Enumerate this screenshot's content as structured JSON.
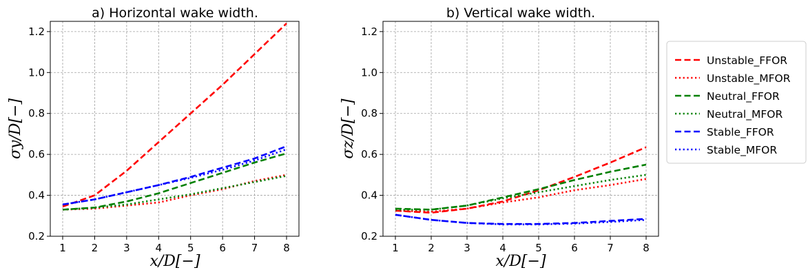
{
  "series_styles": [
    {
      "name": "Unstable_FFOR",
      "color": "#ff0000",
      "dash": "dashed"
    },
    {
      "name": "Unstable_MFOR",
      "color": "#ff0000",
      "dash": "dotted"
    },
    {
      "name": "Neutral_FFOR",
      "color": "#008000",
      "dash": "dashed"
    },
    {
      "name": "Neutral_MFOR",
      "color": "#008000",
      "dash": "dotted"
    },
    {
      "name": "Stable_FFOR",
      "color": "#0000ff",
      "dash": "dashed"
    },
    {
      "name": "Stable_MFOR",
      "color": "#0000ff",
      "dash": "dotted"
    }
  ],
  "chart_data": [
    {
      "type": "line",
      "title": "a) Horizontal wake width.",
      "xlabel": "x/D[−]",
      "ylabel": "σy/D[−]",
      "xlim": [
        1,
        8
      ],
      "ylim": [
        0.2,
        1.25
      ],
      "x": [
        1,
        2,
        3,
        4,
        5,
        6,
        7,
        8
      ],
      "xticks": [
        "1",
        "2",
        "3",
        "4",
        "5",
        "6",
        "7",
        "8"
      ],
      "yticks": [
        "0.2",
        "0.4",
        "0.6",
        "0.8",
        "1.0",
        "1.2"
      ],
      "grid": true,
      "series": [
        {
          "name": "Unstable_FFOR",
          "values": [
            0.345,
            0.4,
            0.52,
            0.66,
            0.8,
            0.94,
            1.09,
            1.24
          ]
        },
        {
          "name": "Unstable_MFOR",
          "values": [
            0.33,
            0.335,
            0.35,
            0.365,
            0.4,
            0.43,
            0.47,
            0.5
          ]
        },
        {
          "name": "Neutral_FFOR",
          "values": [
            0.33,
            0.34,
            0.37,
            0.41,
            0.46,
            0.51,
            0.56,
            0.605
          ]
        },
        {
          "name": "Neutral_MFOR",
          "values": [
            0.33,
            0.34,
            0.355,
            0.38,
            0.405,
            0.435,
            0.465,
            0.495
          ]
        },
        {
          "name": "Stable_FFOR",
          "values": [
            0.355,
            0.38,
            0.415,
            0.45,
            0.49,
            0.535,
            0.58,
            0.64
          ]
        },
        {
          "name": "Stable_MFOR",
          "values": [
            0.355,
            0.38,
            0.415,
            0.45,
            0.485,
            0.525,
            0.57,
            0.625
          ]
        }
      ]
    },
    {
      "type": "line",
      "title": "b) Vertical wake width.",
      "xlabel": "x/D[−]",
      "ylabel": "σz/D[−]",
      "xlim": [
        1,
        8
      ],
      "ylim": [
        0.2,
        1.25
      ],
      "x": [
        1,
        2,
        3,
        4,
        5,
        6,
        7,
        8
      ],
      "xticks": [
        "1",
        "2",
        "3",
        "4",
        "5",
        "6",
        "7",
        "8"
      ],
      "yticks": [
        "0.2",
        "0.4",
        "0.6",
        "0.8",
        "1.0",
        "1.2"
      ],
      "grid": true,
      "series": [
        {
          "name": "Unstable_FFOR",
          "values": [
            0.325,
            0.315,
            0.335,
            0.37,
            0.425,
            0.49,
            0.56,
            0.635
          ]
        },
        {
          "name": "Unstable_MFOR",
          "values": [
            0.325,
            0.32,
            0.335,
            0.365,
            0.39,
            0.425,
            0.45,
            0.48
          ]
        },
        {
          "name": "Neutral_FFOR",
          "values": [
            0.335,
            0.33,
            0.35,
            0.39,
            0.43,
            0.475,
            0.515,
            0.55
          ]
        },
        {
          "name": "Neutral_MFOR",
          "values": [
            0.33,
            0.33,
            0.35,
            0.385,
            0.415,
            0.445,
            0.475,
            0.5
          ]
        },
        {
          "name": "Stable_FFOR",
          "values": [
            0.305,
            0.28,
            0.265,
            0.26,
            0.26,
            0.265,
            0.275,
            0.285
          ]
        },
        {
          "name": "Stable_MFOR",
          "values": [
            0.305,
            0.28,
            0.265,
            0.258,
            0.258,
            0.262,
            0.27,
            0.28
          ]
        }
      ]
    }
  ],
  "legend": {
    "placement": "right",
    "entries": [
      "Unstable_FFOR",
      "Unstable_MFOR",
      "Neutral_FFOR",
      "Neutral_MFOR",
      "Stable_FFOR",
      "Stable_MFOR"
    ]
  }
}
